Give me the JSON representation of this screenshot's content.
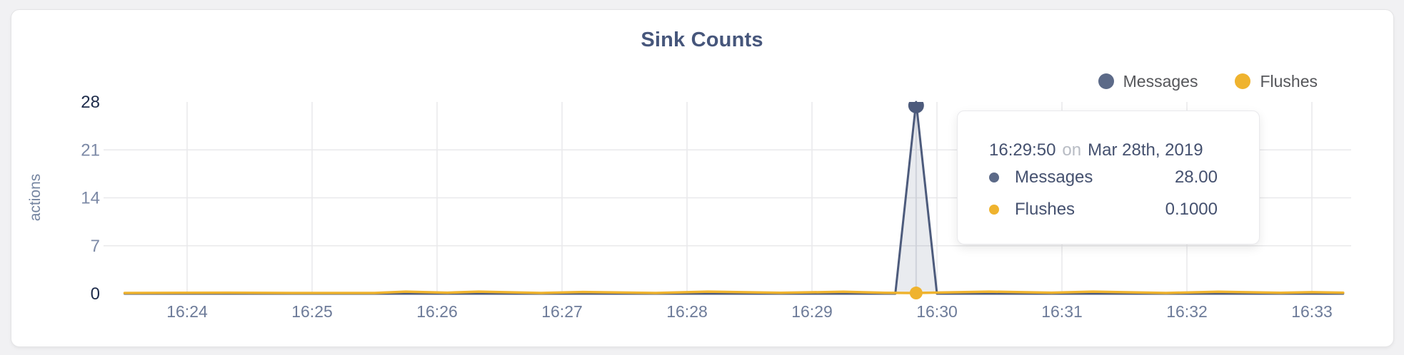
{
  "header": {
    "title": "Sink Counts"
  },
  "legend": {
    "items": [
      {
        "label": "Messages",
        "color": "#5c6a88"
      },
      {
        "label": "Flushes",
        "color": "#efb32e"
      }
    ]
  },
  "tooltip": {
    "time": "16:29:50",
    "separator": "on",
    "date": "Mar 28th, 2019",
    "rows": [
      {
        "label": "Messages",
        "value": "28.00",
        "color": "#5c6a88"
      },
      {
        "label": "Flushes",
        "value": "0.1000",
        "color": "#efb32e"
      }
    ]
  },
  "chart_data": {
    "type": "line",
    "title": "Sink Counts",
    "xlabel": "",
    "ylabel": "actions",
    "ylim": [
      0,
      28
    ],
    "grid": "both",
    "legend_position": "top-right",
    "x_ticks": [
      "16:24",
      "16:25",
      "16:26",
      "16:27",
      "16:28",
      "16:29",
      "16:30",
      "16:31",
      "16:32",
      "16:33"
    ],
    "y_ticks": [
      {
        "value": 0,
        "emphasized": true,
        "gridline": false
      },
      {
        "value": 7,
        "emphasized": false,
        "gridline": true
      },
      {
        "value": 14,
        "emphasized": false,
        "gridline": true
      },
      {
        "value": 21,
        "emphasized": false,
        "gridline": true
      },
      {
        "value": 28,
        "emphasized": true,
        "gridline": false
      }
    ],
    "x_range": [
      "16:23:30",
      "16:33:15"
    ],
    "highlight": {
      "time": "16:29:50",
      "date": "Mar 28th, 2019",
      "Messages": 28.0,
      "Flushes": 0.1
    },
    "series": [
      {
        "name": "Messages",
        "color": "#4d5b7c",
        "area_fill": "rgba(77,91,124,0.12)",
        "points": [
          [
            "16:23:30",
            0
          ],
          [
            "16:29:40",
            0
          ],
          [
            "16:29:50",
            28
          ],
          [
            "16:30:00",
            0
          ],
          [
            "16:33:15",
            0
          ]
        ]
      },
      {
        "name": "Flushes",
        "color": "#efb32e",
        "area_fill": null,
        "points": [
          [
            "16:23:30",
            0.1
          ],
          [
            "16:24:20",
            0.15
          ],
          [
            "16:24:50",
            0.1
          ],
          [
            "16:25:30",
            0.1
          ],
          [
            "16:25:45",
            0.3
          ],
          [
            "16:26:05",
            0.15
          ],
          [
            "16:26:20",
            0.3
          ],
          [
            "16:26:50",
            0.1
          ],
          [
            "16:27:10",
            0.25
          ],
          [
            "16:27:45",
            0.1
          ],
          [
            "16:28:10",
            0.3
          ],
          [
            "16:28:45",
            0.12
          ],
          [
            "16:29:15",
            0.28
          ],
          [
            "16:29:35",
            0.12
          ],
          [
            "16:29:50",
            0.1
          ],
          [
            "16:30:25",
            0.3
          ],
          [
            "16:30:55",
            0.15
          ],
          [
            "16:31:15",
            0.3
          ],
          [
            "16:31:50",
            0.1
          ],
          [
            "16:32:15",
            0.28
          ],
          [
            "16:32:45",
            0.12
          ],
          [
            "16:33:00",
            0.22
          ],
          [
            "16:33:15",
            0.15
          ]
        ]
      }
    ],
    "axis_colors": {
      "tick_default": "#7c89a6",
      "tick_emphasized": "#1d2b4a",
      "x_tick": "#6d7b99",
      "grid": "#e9e9eb",
      "hover_line": "#e2e3e8",
      "axis_title": "#7484a0"
    }
  }
}
